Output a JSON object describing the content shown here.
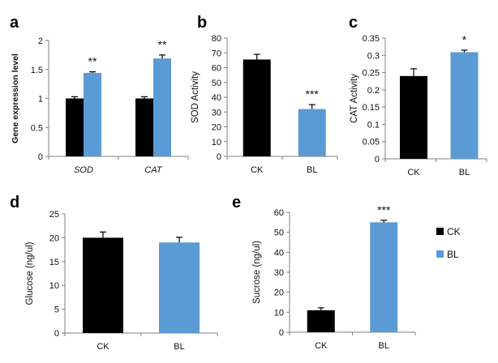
{
  "colors": {
    "ck": "#000000",
    "bl": "#5B9BD5",
    "axis": "#7f7f7f",
    "error": "#000000"
  },
  "legend": [
    {
      "label": "CK",
      "color": "#000000"
    },
    {
      "label": "BL",
      "color": "#5B9BD5"
    }
  ],
  "chart_data": [
    {
      "panel": "a",
      "type": "bar",
      "categories": [
        "SOD",
        "CAT"
      ],
      "categories_italic": true,
      "series": [
        {
          "name": "CK",
          "values": [
            1.0,
            1.0
          ],
          "errors": [
            0.03,
            0.03
          ]
        },
        {
          "name": "BL",
          "values": [
            1.44,
            1.69
          ],
          "errors": [
            0.02,
            0.06
          ]
        }
      ],
      "significance": [
        "**",
        "**"
      ],
      "ylabel": "Gene expression level",
      "ylim": [
        0,
        2
      ],
      "yticks": [
        0,
        0.5,
        1,
        1.5,
        2
      ],
      "ytick_labels": [
        "0",
        "0.5",
        "1",
        "1.5",
        "2"
      ]
    },
    {
      "panel": "b",
      "type": "bar",
      "categories": [
        "CK",
        "BL"
      ],
      "series": [
        {
          "values": [
            65.5,
            32
          ],
          "errors": [
            3.5,
            3
          ]
        }
      ],
      "significance": [
        "",
        "***"
      ],
      "ylabel": "SOD Activity",
      "ylim": [
        0,
        80
      ],
      "yticks": [
        0,
        10,
        20,
        30,
        40,
        50,
        60,
        70,
        80
      ],
      "ytick_labels": [
        "0",
        "10",
        "20",
        "30",
        "40",
        "50",
        "60",
        "70",
        "80"
      ]
    },
    {
      "panel": "c",
      "type": "bar",
      "categories": [
        "CK",
        "BL"
      ],
      "series": [
        {
          "values": [
            0.24,
            0.309
          ],
          "errors": [
            0.021,
            0.006
          ]
        }
      ],
      "significance": [
        "",
        "*"
      ],
      "ylabel": "CAT Activity",
      "ylim": [
        0,
        0.35
      ],
      "yticks": [
        0,
        0.05,
        0.1,
        0.15,
        0.2,
        0.25,
        0.3,
        0.35
      ],
      "ytick_labels": [
        "0",
        "0.05",
        "0.1",
        "0.15",
        "0.2",
        "0.25",
        "0.3",
        "0.35"
      ]
    },
    {
      "panel": "d",
      "type": "bar",
      "categories": [
        "CK",
        "BL"
      ],
      "series": [
        {
          "values": [
            20,
            19
          ],
          "errors": [
            1.2,
            1.1
          ]
        }
      ],
      "significance": [
        "",
        ""
      ],
      "ylabel": "Glucose (ng/ul)",
      "ylim": [
        0,
        25
      ],
      "yticks": [
        0,
        5,
        10,
        15,
        20,
        25
      ],
      "ytick_labels": [
        "0",
        "5",
        "10",
        "15",
        "20",
        "25"
      ]
    },
    {
      "panel": "e",
      "type": "bar",
      "categories": [
        "CK",
        "BL"
      ],
      "series": [
        {
          "values": [
            11,
            55
          ],
          "errors": [
            1.2,
            1.0
          ]
        }
      ],
      "significance": [
        "",
        "***"
      ],
      "ylabel": "Sucrose (ng/ul)",
      "ylim": [
        0,
        60
      ],
      "yticks": [
        0,
        10,
        20,
        30,
        40,
        50,
        60
      ],
      "ytick_labels": [
        "0",
        "10",
        "20",
        "30",
        "40",
        "50",
        "60"
      ]
    }
  ]
}
